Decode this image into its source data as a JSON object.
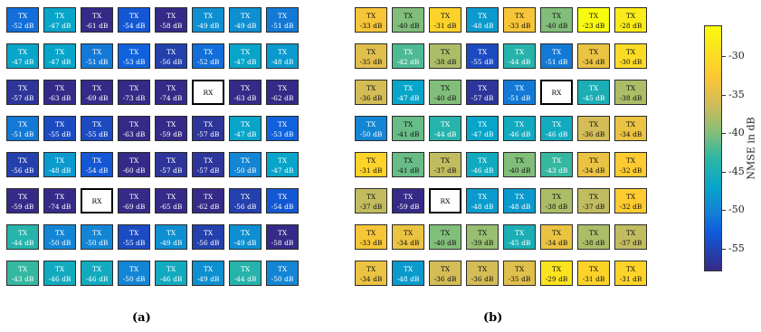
{
  "chart_data": [
    {
      "type": "heatmap",
      "panel": "(a)",
      "grid_size": [
        8,
        8
      ],
      "unit": "dB",
      "tile_prefix_tx": "TX",
      "rx_label": "RX",
      "rows": [
        [
          -52,
          -47,
          -61,
          -54,
          -58,
          -49,
          -49,
          -51
        ],
        [
          -47,
          -47,
          -51,
          -53,
          -56,
          -52,
          -47,
          -48
        ],
        [
          -57,
          -63,
          -69,
          -73,
          -74,
          "RX",
          -63,
          -62
        ],
        [
          -51,
          -55,
          -55,
          -63,
          -59,
          -57,
          -47,
          -53
        ],
        [
          -56,
          -48,
          -54,
          -60,
          -57,
          -57,
          -50,
          -47
        ],
        [
          -59,
          -74,
          "RX",
          -69,
          -65,
          -62,
          -56,
          -54
        ],
        [
          -44,
          -50,
          -50,
          -55,
          -49,
          -56,
          -49,
          -58
        ],
        [
          -43,
          -46,
          -46,
          -50,
          -46,
          -49,
          -44,
          -50
        ]
      ]
    },
    {
      "type": "heatmap",
      "panel": "(b)",
      "grid_size": [
        8,
        8
      ],
      "unit": "dB",
      "tile_prefix_tx": "TX",
      "rx_label": "RX",
      "rows": [
        [
          -33,
          -40,
          -31,
          -48,
          -33,
          -40,
          -23,
          -28
        ],
        [
          -35,
          -42,
          -38,
          -55,
          -44,
          -51,
          -34,
          -30
        ],
        [
          -36,
          -47,
          -40,
          -57,
          -51,
          "RX",
          -45,
          -38
        ],
        [
          -50,
          -41,
          -44,
          -47,
          -46,
          -46,
          -36,
          -34
        ],
        [
          -31,
          -41,
          -37,
          -46,
          -40,
          -43,
          -34,
          -32
        ],
        [
          -37,
          -59,
          "RX",
          -48,
          -48,
          -38,
          -37,
          -32
        ],
        [
          -33,
          -34,
          -40,
          -39,
          -45,
          -34,
          -38,
          -37
        ],
        [
          -34,
          -48,
          -36,
          -36,
          -35,
          -29,
          -31,
          -31
        ]
      ]
    }
  ],
  "colorbar": {
    "label": "NMSE in dB",
    "range": [
      -58,
      -26
    ],
    "ticks": [
      -30,
      -35,
      -40,
      -45,
      -50,
      -55
    ],
    "colormap": "parula"
  },
  "panel_labels": [
    "(a)",
    "(b)"
  ]
}
